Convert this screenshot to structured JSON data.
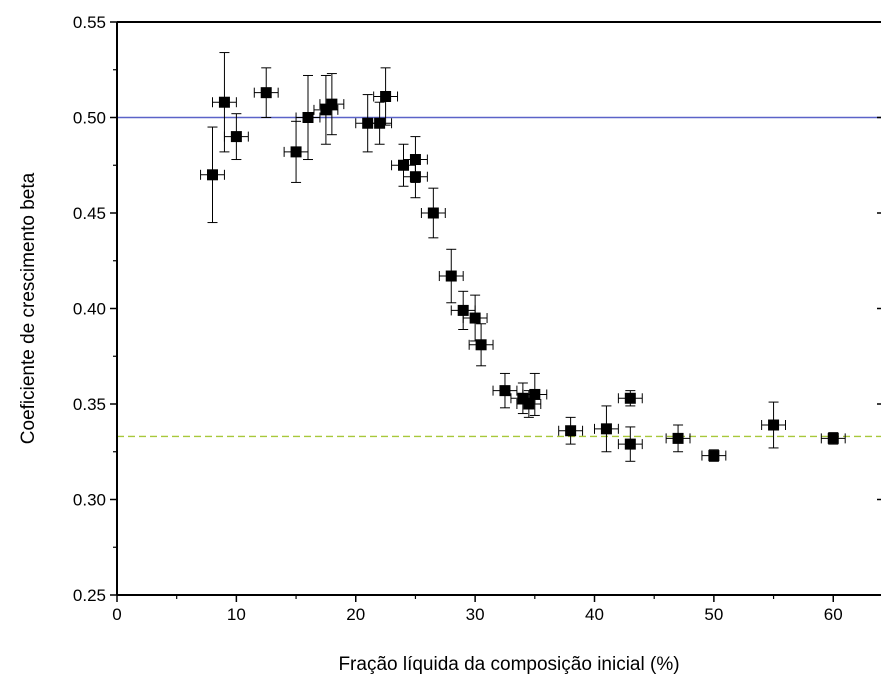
{
  "chart_data": {
    "type": "scatter",
    "title": "",
    "xlabel": "Fração líquida da composição inicial (%)",
    "ylabel": "Coeficiente de crescimento beta",
    "xlim": [
      0,
      64
    ],
    "ylim": [
      0.25,
      0.55
    ],
    "x_ticks": [
      0,
      10,
      20,
      30,
      40,
      50,
      60
    ],
    "y_ticks": [
      0.25,
      0.3,
      0.35,
      0.4,
      0.45,
      0.5,
      0.55
    ],
    "x_tick_labels": [
      "0",
      "10",
      "20",
      "30",
      "40",
      "50",
      "60"
    ],
    "y_tick_labels": [
      "0.25",
      "0.30",
      "0.35",
      "0.40",
      "0.45",
      "0.50",
      "0.55"
    ],
    "grid": false,
    "points": [
      {
        "x": 8.0,
        "y": 0.47,
        "xerr": 1.0,
        "yerr": 0.025
      },
      {
        "x": 9.0,
        "y": 0.508,
        "xerr": 1.0,
        "yerr": 0.026
      },
      {
        "x": 10.0,
        "y": 0.49,
        "xerr": 1.0,
        "yerr": 0.012
      },
      {
        "x": 12.5,
        "y": 0.513,
        "xerr": 1.0,
        "yerr": 0.013
      },
      {
        "x": 15.0,
        "y": 0.482,
        "xerr": 1.0,
        "yerr": 0.016
      },
      {
        "x": 16.0,
        "y": 0.5,
        "xerr": 1.0,
        "yerr": 0.022
      },
      {
        "x": 17.5,
        "y": 0.504,
        "xerr": 1.0,
        "yerr": 0.018
      },
      {
        "x": 18.0,
        "y": 0.507,
        "xerr": 1.0,
        "yerr": 0.016
      },
      {
        "x": 21.0,
        "y": 0.497,
        "xerr": 1.0,
        "yerr": 0.015
      },
      {
        "x": 22.0,
        "y": 0.497,
        "xerr": 1.0,
        "yerr": 0.011
      },
      {
        "x": 22.5,
        "y": 0.511,
        "xerr": 1.0,
        "yerr": 0.015
      },
      {
        "x": 24.0,
        "y": 0.475,
        "xerr": 1.0,
        "yerr": 0.011
      },
      {
        "x": 25.0,
        "y": 0.478,
        "xerr": 1.0,
        "yerr": 0.012
      },
      {
        "x": 25.0,
        "y": 0.469,
        "xerr": 1.0,
        "yerr": 0.011
      },
      {
        "x": 26.5,
        "y": 0.45,
        "xerr": 1.0,
        "yerr": 0.013
      },
      {
        "x": 28.0,
        "y": 0.417,
        "xerr": 1.0,
        "yerr": 0.014
      },
      {
        "x": 29.0,
        "y": 0.399,
        "xerr": 1.0,
        "yerr": 0.01
      },
      {
        "x": 30.0,
        "y": 0.395,
        "xerr": 1.0,
        "yerr": 0.012
      },
      {
        "x": 30.5,
        "y": 0.381,
        "xerr": 1.0,
        "yerr": 0.011
      },
      {
        "x": 32.5,
        "y": 0.357,
        "xerr": 1.0,
        "yerr": 0.009
      },
      {
        "x": 34.0,
        "y": 0.353,
        "xerr": 1.0,
        "yerr": 0.008
      },
      {
        "x": 34.5,
        "y": 0.35,
        "xerr": 1.0,
        "yerr": 0.007
      },
      {
        "x": 35.0,
        "y": 0.355,
        "xerr": 1.0,
        "yerr": 0.011
      },
      {
        "x": 38.0,
        "y": 0.336,
        "xerr": 1.0,
        "yerr": 0.007
      },
      {
        "x": 41.0,
        "y": 0.337,
        "xerr": 1.0,
        "yerr": 0.012
      },
      {
        "x": 43.0,
        "y": 0.353,
        "xerr": 1.0,
        "yerr": 0.004
      },
      {
        "x": 43.0,
        "y": 0.329,
        "xerr": 1.0,
        "yerr": 0.009
      },
      {
        "x": 47.0,
        "y": 0.332,
        "xerr": 1.0,
        "yerr": 0.007
      },
      {
        "x": 50.0,
        "y": 0.323,
        "xerr": 1.0,
        "yerr": 0.003
      },
      {
        "x": 55.0,
        "y": 0.339,
        "xerr": 1.0,
        "yerr": 0.012
      },
      {
        "x": 60.0,
        "y": 0.332,
        "xerr": 1.0,
        "yerr": 0.003
      }
    ],
    "reference_lines": [
      {
        "y": 0.5,
        "style": "solid",
        "color": "#5b63c8"
      },
      {
        "y": 0.333,
        "style": "dashed",
        "color": "#a8c83a"
      }
    ],
    "marker_color": "#000000"
  }
}
